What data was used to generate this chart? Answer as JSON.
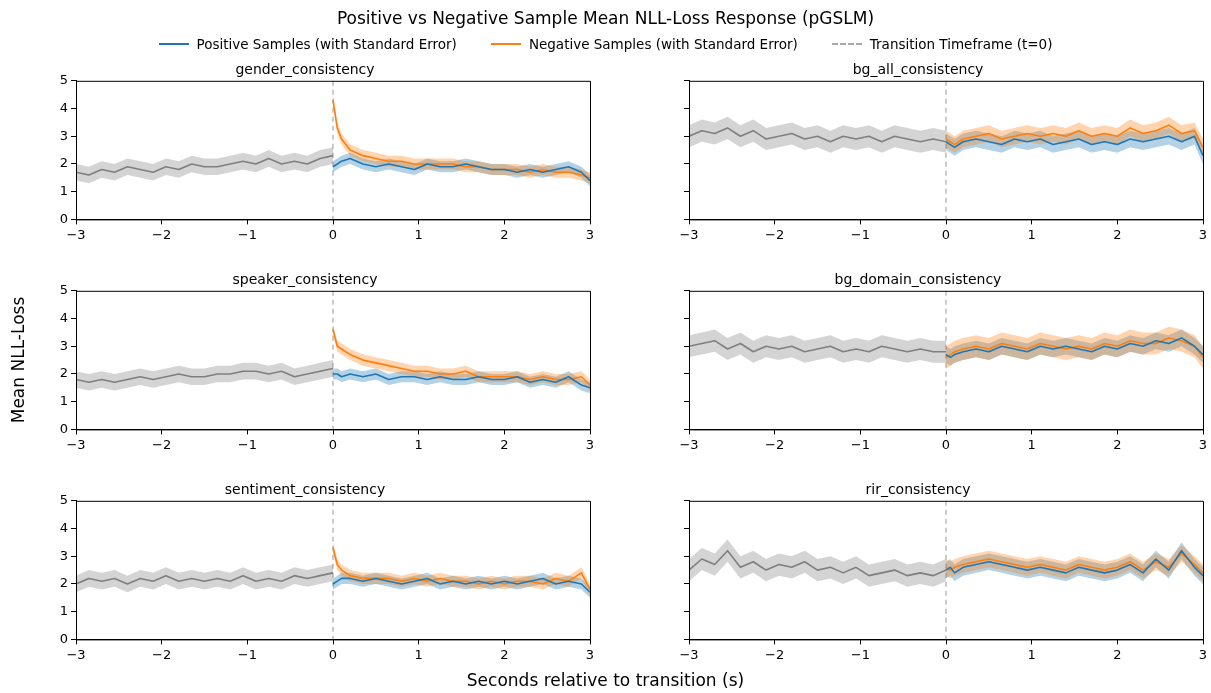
{
  "chart_data": [
    {
      "type": "line",
      "title": "Positive vs Negative Sample Mean NLL-Loss Response (pGSLM)",
      "subtitle": "gender_consistency",
      "xlabel": "Seconds relative to transition (s)",
      "ylabel": "Mean NLL-Loss",
      "legend": "top",
      "marker": "none",
      "xlim": [
        -3,
        3
      ],
      "xticks": [
        {
          "value": -3,
          "label": "−3"
        },
        {
          "value": -2,
          "label": "−2"
        },
        {
          "value": -1,
          "label": "−1"
        },
        0,
        1,
        2,
        3
      ],
      "ylim": [
        0,
        5
      ],
      "yticks": [
        0,
        1,
        2,
        3,
        4,
        5
      ],
      "ref_lines": [
        {
          "axis": "x",
          "value": 0,
          "label": "Transition Timeframe (t=0)",
          "color": "#aaaaaa",
          "line_style": "dashed"
        }
      ],
      "series": [
        {
          "color": "#7f7f7f",
          "x": [
            -3,
            -2.85,
            -2.7,
            -2.55,
            -2.4,
            -2.25,
            -2.1,
            -1.95,
            -1.8,
            -1.65,
            -1.5,
            -1.35,
            -1.2,
            -1.05,
            -0.9,
            -0.75,
            -0.6,
            -0.45,
            -0.3,
            -0.15,
            0
          ],
          "values": [
            1.7,
            1.6,
            1.8,
            1.7,
            1.9,
            1.8,
            1.7,
            1.9,
            1.8,
            2.0,
            1.9,
            1.9,
            2.0,
            2.1,
            2.0,
            2.2,
            2.0,
            2.1,
            2.0,
            2.2,
            2.3
          ],
          "lower": [
            1.4,
            1.3,
            1.5,
            1.4,
            1.6,
            1.5,
            1.4,
            1.6,
            1.5,
            1.7,
            1.6,
            1.6,
            1.7,
            1.8,
            1.7,
            1.9,
            1.7,
            1.8,
            1.7,
            1.9,
            2.0
          ],
          "upper": [
            2.0,
            1.9,
            2.1,
            2.0,
            2.2,
            2.1,
            2.0,
            2.2,
            2.1,
            2.3,
            2.2,
            2.2,
            2.3,
            2.4,
            2.3,
            2.5,
            2.3,
            2.4,
            2.3,
            2.5,
            2.6
          ]
        },
        {
          "name": "Positive Samples (with Standard Error)",
          "color": "#1f77b4",
          "x": [
            0,
            0.05,
            0.1,
            0.2,
            0.35,
            0.5,
            0.65,
            0.8,
            0.95,
            1.1,
            1.25,
            1.4,
            1.55,
            1.7,
            1.85,
            2,
            2.15,
            2.3,
            2.45,
            2.6,
            2.75,
            2.9,
            3
          ],
          "values": [
            1.9,
            2.0,
            2.1,
            2.2,
            2.0,
            1.9,
            2.0,
            1.9,
            1.8,
            2.0,
            1.9,
            1.9,
            2.0,
            1.9,
            1.8,
            1.8,
            1.7,
            1.8,
            1.7,
            1.8,
            1.9,
            1.7,
            1.4
          ],
          "lower": [
            1.7,
            1.8,
            1.9,
            2.0,
            1.8,
            1.7,
            1.8,
            1.7,
            1.6,
            1.8,
            1.7,
            1.7,
            1.8,
            1.7,
            1.6,
            1.6,
            1.5,
            1.6,
            1.5,
            1.6,
            1.7,
            1.5,
            1.2
          ],
          "upper": [
            2.1,
            2.2,
            2.3,
            2.4,
            2.2,
            2.1,
            2.2,
            2.1,
            2.0,
            2.2,
            2.1,
            2.1,
            2.2,
            2.1,
            2.0,
            2.0,
            1.9,
            2.0,
            1.9,
            2.0,
            2.1,
            1.9,
            1.6
          ]
        },
        {
          "name": "Negative Samples (with Standard Error)",
          "color": "#ff7f0e",
          "x": [
            0,
            0.05,
            0.1,
            0.2,
            0.35,
            0.5,
            0.65,
            0.8,
            0.95,
            1.1,
            1.25,
            1.4,
            1.55,
            1.7,
            1.85,
            2,
            2.15,
            2.3,
            2.45,
            2.6,
            2.75,
            2.9,
            3
          ],
          "values": [
            4.3,
            3.3,
            2.9,
            2.5,
            2.3,
            2.2,
            2.1,
            2.1,
            2.0,
            2.0,
            2.0,
            2.0,
            1.9,
            1.9,
            1.8,
            1.8,
            1.8,
            1.7,
            1.8,
            1.7,
            1.7,
            1.6,
            1.5
          ],
          "lower": [
            4.1,
            3.1,
            2.7,
            2.3,
            2.1,
            2.0,
            1.9,
            1.9,
            1.8,
            1.8,
            1.8,
            1.8,
            1.7,
            1.7,
            1.6,
            1.6,
            1.6,
            1.5,
            1.6,
            1.5,
            1.5,
            1.4,
            1.3
          ],
          "upper": [
            4.5,
            3.5,
            3.1,
            2.7,
            2.5,
            2.4,
            2.3,
            2.3,
            2.2,
            2.2,
            2.2,
            2.2,
            2.1,
            2.1,
            2.0,
            2.0,
            2.0,
            1.9,
            2.0,
            1.9,
            1.9,
            1.8,
            1.7
          ]
        }
      ]
    },
    {
      "type": "line",
      "title": "bg_all_consistency",
      "tick_labels": "x",
      "marker": "none",
      "xlim": [
        -3,
        3
      ],
      "xticks": [
        {
          "value": -3,
          "label": "−3"
        },
        {
          "value": -2,
          "label": "−2"
        },
        {
          "value": -1,
          "label": "−1"
        },
        0,
        1,
        2,
        3
      ],
      "ylim": [
        0,
        5
      ],
      "yticks": [
        0,
        1,
        2,
        3,
        4,
        5
      ],
      "ref_lines": [
        {
          "axis": "x",
          "value": 0,
          "color": "#aaaaaa",
          "line_style": "dashed"
        }
      ],
      "series": [
        {
          "color": "#7f7f7f",
          "x": [
            -3,
            -2.85,
            -2.7,
            -2.55,
            -2.4,
            -2.25,
            -2.1,
            -1.95,
            -1.8,
            -1.65,
            -1.5,
            -1.35,
            -1.2,
            -1.05,
            -0.9,
            -0.75,
            -0.6,
            -0.45,
            -0.3,
            -0.15,
            0
          ],
          "values": [
            3.0,
            3.2,
            3.1,
            3.3,
            3.0,
            3.2,
            2.9,
            3.0,
            3.1,
            2.9,
            3.0,
            2.8,
            3.0,
            2.9,
            3.0,
            2.8,
            3.0,
            2.9,
            2.8,
            2.9,
            2.8
          ],
          "lower": [
            2.6,
            2.8,
            2.7,
            2.9,
            2.6,
            2.8,
            2.5,
            2.6,
            2.7,
            2.5,
            2.6,
            2.4,
            2.6,
            2.5,
            2.6,
            2.4,
            2.6,
            2.5,
            2.4,
            2.5,
            2.4
          ],
          "upper": [
            3.4,
            3.6,
            3.5,
            3.7,
            3.4,
            3.6,
            3.3,
            3.4,
            3.5,
            3.3,
            3.4,
            3.2,
            3.4,
            3.3,
            3.4,
            3.2,
            3.4,
            3.3,
            3.2,
            3.3,
            3.2
          ]
        },
        {
          "color": "#1f77b4",
          "x": [
            0,
            0.05,
            0.1,
            0.2,
            0.35,
            0.5,
            0.65,
            0.8,
            0.95,
            1.1,
            1.25,
            1.4,
            1.55,
            1.7,
            1.85,
            2,
            2.15,
            2.3,
            2.45,
            2.6,
            2.75,
            2.9,
            3
          ],
          "values": [
            2.8,
            2.7,
            2.6,
            2.8,
            2.9,
            2.8,
            2.7,
            2.9,
            2.8,
            2.9,
            2.7,
            2.8,
            2.9,
            2.7,
            2.8,
            2.7,
            2.9,
            2.8,
            2.9,
            3.0,
            2.8,
            3.0,
            2.3
          ],
          "lower": [
            2.5,
            2.4,
            2.3,
            2.5,
            2.6,
            2.5,
            2.4,
            2.6,
            2.5,
            2.6,
            2.4,
            2.5,
            2.6,
            2.4,
            2.5,
            2.4,
            2.6,
            2.5,
            2.6,
            2.7,
            2.5,
            2.7,
            2.0
          ],
          "upper": [
            3.1,
            3.0,
            2.9,
            3.1,
            3.2,
            3.1,
            3.0,
            3.2,
            3.1,
            3.2,
            3.0,
            3.1,
            3.2,
            3.0,
            3.1,
            3.0,
            3.2,
            3.1,
            3.2,
            3.3,
            3.1,
            3.3,
            2.6
          ]
        },
        {
          "color": "#ff7f0e",
          "x": [
            0,
            0.05,
            0.1,
            0.2,
            0.35,
            0.5,
            0.65,
            0.8,
            0.95,
            1.1,
            1.25,
            1.4,
            1.55,
            1.7,
            1.85,
            2,
            2.15,
            2.3,
            2.45,
            2.6,
            2.75,
            2.9,
            3
          ],
          "values": [
            2.9,
            2.8,
            2.7,
            2.9,
            3.0,
            3.1,
            2.9,
            3.0,
            3.1,
            3.0,
            3.1,
            3.0,
            3.2,
            3.0,
            3.1,
            3.0,
            3.3,
            3.1,
            3.2,
            3.4,
            3.1,
            3.2,
            2.6
          ],
          "lower": [
            2.6,
            2.5,
            2.4,
            2.6,
            2.7,
            2.8,
            2.6,
            2.7,
            2.8,
            2.7,
            2.8,
            2.7,
            2.9,
            2.7,
            2.8,
            2.7,
            3.0,
            2.8,
            2.9,
            3.1,
            2.8,
            2.9,
            2.3
          ],
          "upper": [
            3.2,
            3.1,
            3.0,
            3.2,
            3.3,
            3.4,
            3.2,
            3.3,
            3.4,
            3.3,
            3.4,
            3.3,
            3.5,
            3.3,
            3.4,
            3.3,
            3.6,
            3.4,
            3.5,
            3.7,
            3.4,
            3.5,
            2.9
          ]
        }
      ]
    },
    {
      "type": "line",
      "title": "speaker_consistency",
      "marker": "none",
      "xlim": [
        -3,
        3
      ],
      "xticks": [
        {
          "value": -3,
          "label": "−3"
        },
        {
          "value": -2,
          "label": "−2"
        },
        {
          "value": -1,
          "label": "−1"
        },
        0,
        1,
        2,
        3
      ],
      "ylim": [
        0,
        5
      ],
      "yticks": [
        0,
        1,
        2,
        3,
        4,
        5
      ],
      "ref_lines": [
        {
          "axis": "x",
          "value": 0,
          "color": "#aaaaaa",
          "line_style": "dashed"
        }
      ],
      "series": [
        {
          "color": "#7f7f7f",
          "x": [
            -3,
            -2.85,
            -2.7,
            -2.55,
            -2.4,
            -2.25,
            -2.1,
            -1.95,
            -1.8,
            -1.65,
            -1.5,
            -1.35,
            -1.2,
            -1.05,
            -0.9,
            -0.75,
            -0.6,
            -0.45,
            -0.3,
            -0.15,
            0
          ],
          "values": [
            1.8,
            1.7,
            1.8,
            1.7,
            1.8,
            1.9,
            1.8,
            1.9,
            2.0,
            1.9,
            1.9,
            2.0,
            2.0,
            2.1,
            2.1,
            2.0,
            2.1,
            1.9,
            2.0,
            2.1,
            2.2
          ],
          "lower": [
            1.5,
            1.4,
            1.5,
            1.4,
            1.5,
            1.6,
            1.5,
            1.6,
            1.7,
            1.6,
            1.6,
            1.7,
            1.7,
            1.8,
            1.8,
            1.7,
            1.8,
            1.6,
            1.7,
            1.8,
            1.9
          ],
          "upper": [
            2.1,
            2.0,
            2.1,
            2.0,
            2.1,
            2.2,
            2.1,
            2.2,
            2.3,
            2.2,
            2.2,
            2.3,
            2.3,
            2.4,
            2.4,
            2.3,
            2.4,
            2.2,
            2.3,
            2.4,
            2.5
          ]
        },
        {
          "color": "#1f77b4",
          "x": [
            0,
            0.05,
            0.1,
            0.2,
            0.35,
            0.5,
            0.65,
            0.8,
            0.95,
            1.1,
            1.25,
            1.4,
            1.55,
            1.7,
            1.85,
            2,
            2.15,
            2.3,
            2.45,
            2.6,
            2.75,
            2.9,
            3
          ],
          "values": [
            2.0,
            2.0,
            1.9,
            2.0,
            1.9,
            2.0,
            1.8,
            1.9,
            1.9,
            1.8,
            1.9,
            1.8,
            1.8,
            1.9,
            1.8,
            1.8,
            1.9,
            1.7,
            1.8,
            1.7,
            1.9,
            1.6,
            1.5
          ],
          "lower": [
            1.8,
            1.8,
            1.7,
            1.8,
            1.7,
            1.8,
            1.6,
            1.7,
            1.7,
            1.6,
            1.7,
            1.6,
            1.6,
            1.7,
            1.6,
            1.6,
            1.7,
            1.5,
            1.6,
            1.5,
            1.7,
            1.4,
            1.3
          ],
          "upper": [
            2.2,
            2.2,
            2.1,
            2.2,
            2.1,
            2.2,
            2.0,
            2.1,
            2.1,
            2.0,
            2.1,
            2.0,
            2.0,
            2.1,
            2.0,
            2.0,
            2.1,
            1.9,
            2.0,
            1.9,
            2.1,
            1.8,
            1.7
          ]
        },
        {
          "color": "#ff7f0e",
          "x": [
            0,
            0.05,
            0.1,
            0.2,
            0.35,
            0.5,
            0.65,
            0.8,
            0.95,
            1.1,
            1.25,
            1.4,
            1.55,
            1.7,
            1.85,
            2,
            2.15,
            2.3,
            2.45,
            2.6,
            2.75,
            2.9,
            3
          ],
          "values": [
            3.6,
            3.0,
            2.9,
            2.7,
            2.5,
            2.4,
            2.3,
            2.2,
            2.1,
            2.1,
            2.0,
            2.0,
            2.1,
            1.9,
            1.9,
            1.9,
            1.9,
            1.8,
            1.9,
            1.8,
            1.8,
            1.9,
            1.6
          ],
          "lower": [
            3.4,
            2.8,
            2.7,
            2.5,
            2.3,
            2.2,
            2.1,
            2.0,
            1.9,
            1.9,
            1.8,
            1.8,
            1.9,
            1.7,
            1.7,
            1.7,
            1.7,
            1.6,
            1.7,
            1.6,
            1.6,
            1.7,
            1.4
          ],
          "upper": [
            3.8,
            3.2,
            3.1,
            2.9,
            2.7,
            2.6,
            2.5,
            2.4,
            2.3,
            2.3,
            2.2,
            2.2,
            2.3,
            2.1,
            2.1,
            2.1,
            2.1,
            2.0,
            2.1,
            2.0,
            2.0,
            2.1,
            1.8
          ]
        }
      ]
    },
    {
      "type": "line",
      "title": "bg_domain_consistency",
      "tick_labels": "x",
      "marker": "none",
      "xlim": [
        -3,
        3
      ],
      "xticks": [
        {
          "value": -3,
          "label": "−3"
        },
        {
          "value": -2,
          "label": "−2"
        },
        {
          "value": -1,
          "label": "−1"
        },
        0,
        1,
        2,
        3
      ],
      "ylim": [
        0,
        5
      ],
      "yticks": [
        0,
        1,
        2,
        3,
        4,
        5
      ],
      "ref_lines": [
        {
          "axis": "x",
          "value": 0,
          "color": "#aaaaaa",
          "line_style": "dashed"
        }
      ],
      "series": [
        {
          "color": "#7f7f7f",
          "x": [
            -3,
            -2.85,
            -2.7,
            -2.55,
            -2.4,
            -2.25,
            -2.1,
            -1.95,
            -1.8,
            -1.65,
            -1.5,
            -1.35,
            -1.2,
            -1.05,
            -0.9,
            -0.75,
            -0.6,
            -0.45,
            -0.3,
            -0.15,
            0
          ],
          "values": [
            3.0,
            3.1,
            3.2,
            2.9,
            3.1,
            2.8,
            3.0,
            2.9,
            3.0,
            2.8,
            2.9,
            3.0,
            2.8,
            2.9,
            2.8,
            3.0,
            2.9,
            2.8,
            2.9,
            2.8,
            2.8
          ],
          "lower": [
            2.6,
            2.7,
            2.8,
            2.5,
            2.7,
            2.4,
            2.6,
            2.5,
            2.6,
            2.4,
            2.5,
            2.6,
            2.4,
            2.5,
            2.4,
            2.6,
            2.5,
            2.4,
            2.5,
            2.4,
            2.4
          ],
          "upper": [
            3.4,
            3.5,
            3.6,
            3.3,
            3.5,
            3.2,
            3.4,
            3.3,
            3.4,
            3.2,
            3.3,
            3.4,
            3.2,
            3.3,
            3.2,
            3.4,
            3.3,
            3.2,
            3.3,
            3.2,
            3.2
          ]
        },
        {
          "color": "#1f77b4",
          "x": [
            0,
            0.05,
            0.1,
            0.2,
            0.35,
            0.5,
            0.65,
            0.8,
            0.95,
            1.1,
            1.25,
            1.4,
            1.55,
            1.7,
            1.85,
            2,
            2.15,
            2.3,
            2.45,
            2.6,
            2.75,
            2.9,
            3
          ],
          "values": [
            2.7,
            2.6,
            2.7,
            2.8,
            2.9,
            2.8,
            3.0,
            2.9,
            2.8,
            3.0,
            2.9,
            3.0,
            2.9,
            2.8,
            3.0,
            2.9,
            3.1,
            3.0,
            3.2,
            3.1,
            3.3,
            3.0,
            2.7
          ],
          "lower": [
            2.4,
            2.3,
            2.4,
            2.5,
            2.6,
            2.5,
            2.7,
            2.6,
            2.5,
            2.7,
            2.6,
            2.7,
            2.6,
            2.5,
            2.7,
            2.6,
            2.8,
            2.7,
            2.9,
            2.8,
            3.0,
            2.7,
            2.4
          ],
          "upper": [
            3.0,
            2.9,
            3.0,
            3.1,
            3.2,
            3.1,
            3.3,
            3.2,
            3.1,
            3.3,
            3.2,
            3.3,
            3.2,
            3.1,
            3.3,
            3.2,
            3.4,
            3.3,
            3.5,
            3.4,
            3.6,
            3.3,
            3.0
          ]
        },
        {
          "color": "#ff7f0e",
          "x": [
            0,
            0.05,
            0.1,
            0.2,
            0.35,
            0.5,
            0.65,
            0.8,
            0.95,
            1.1,
            1.25,
            1.4,
            1.55,
            1.7,
            1.85,
            2,
            2.15,
            2.3,
            2.45,
            2.6,
            2.75,
            2.9,
            3
          ],
          "values": [
            2.6,
            2.7,
            2.8,
            2.9,
            3.0,
            2.9,
            3.1,
            3.0,
            2.9,
            3.1,
            3.0,
            2.9,
            3.0,
            2.9,
            3.1,
            3.0,
            3.2,
            3.1,
            3.1,
            3.3,
            3.2,
            3.0,
            2.6
          ],
          "lower": [
            2.2,
            2.3,
            2.4,
            2.5,
            2.6,
            2.5,
            2.7,
            2.6,
            2.5,
            2.7,
            2.6,
            2.5,
            2.6,
            2.5,
            2.7,
            2.6,
            2.8,
            2.7,
            2.7,
            2.9,
            2.8,
            2.6,
            2.2
          ],
          "upper": [
            3.0,
            3.1,
            3.2,
            3.3,
            3.4,
            3.3,
            3.5,
            3.4,
            3.3,
            3.5,
            3.4,
            3.3,
            3.4,
            3.3,
            3.5,
            3.4,
            3.6,
            3.5,
            3.5,
            3.7,
            3.6,
            3.4,
            3.0
          ]
        }
      ]
    },
    {
      "type": "line",
      "title": "sentiment_consistency",
      "marker": "none",
      "xlim": [
        -3,
        3
      ],
      "xticks": [
        {
          "value": -3,
          "label": "−3"
        },
        {
          "value": -2,
          "label": "−2"
        },
        {
          "value": -1,
          "label": "−1"
        },
        0,
        1,
        2,
        3
      ],
      "ylim": [
        0,
        5
      ],
      "yticks": [
        0,
        1,
        2,
        3,
        4,
        5
      ],
      "ref_lines": [
        {
          "axis": "x",
          "value": 0,
          "color": "#aaaaaa",
          "line_style": "dashed"
        }
      ],
      "series": [
        {
          "color": "#7f7f7f",
          "x": [
            -3,
            -2.85,
            -2.7,
            -2.55,
            -2.4,
            -2.25,
            -2.1,
            -1.95,
            -1.8,
            -1.65,
            -1.5,
            -1.35,
            -1.2,
            -1.05,
            -0.9,
            -0.75,
            -0.6,
            -0.45,
            -0.3,
            -0.15,
            0
          ],
          "values": [
            2.0,
            2.2,
            2.1,
            2.2,
            2.0,
            2.2,
            2.1,
            2.3,
            2.1,
            2.2,
            2.1,
            2.2,
            2.1,
            2.3,
            2.1,
            2.2,
            2.1,
            2.3,
            2.2,
            2.3,
            2.4
          ],
          "lower": [
            1.7,
            1.9,
            1.8,
            1.9,
            1.7,
            1.9,
            1.8,
            2.0,
            1.8,
            1.9,
            1.8,
            1.9,
            1.8,
            2.0,
            1.8,
            1.9,
            1.8,
            2.0,
            1.9,
            2.0,
            2.1
          ],
          "upper": [
            2.3,
            2.5,
            2.4,
            2.5,
            2.3,
            2.5,
            2.4,
            2.6,
            2.4,
            2.5,
            2.4,
            2.5,
            2.4,
            2.6,
            2.4,
            2.5,
            2.4,
            2.6,
            2.5,
            2.6,
            2.7
          ]
        },
        {
          "color": "#1f77b4",
          "x": [
            0,
            0.05,
            0.1,
            0.2,
            0.35,
            0.5,
            0.65,
            0.8,
            0.95,
            1.1,
            1.25,
            1.4,
            1.55,
            1.7,
            1.85,
            2,
            2.15,
            2.3,
            2.45,
            2.6,
            2.75,
            2.9,
            3
          ],
          "values": [
            2.0,
            2.1,
            2.2,
            2.2,
            2.1,
            2.2,
            2.1,
            2.0,
            2.1,
            2.2,
            2.0,
            2.1,
            2.0,
            2.1,
            2.0,
            2.1,
            2.0,
            2.1,
            2.2,
            2.0,
            2.1,
            2.0,
            1.7
          ],
          "lower": [
            1.8,
            1.9,
            2.0,
            2.0,
            1.9,
            2.0,
            1.9,
            1.8,
            1.9,
            2.0,
            1.8,
            1.9,
            1.8,
            1.9,
            1.8,
            1.9,
            1.8,
            1.9,
            2.0,
            1.8,
            1.9,
            1.8,
            1.5
          ],
          "upper": [
            2.2,
            2.3,
            2.4,
            2.4,
            2.3,
            2.4,
            2.3,
            2.2,
            2.3,
            2.4,
            2.2,
            2.3,
            2.2,
            2.3,
            2.2,
            2.3,
            2.2,
            2.3,
            2.4,
            2.2,
            2.3,
            2.2,
            1.9
          ]
        },
        {
          "color": "#ff7f0e",
          "x": [
            0,
            0.05,
            0.1,
            0.2,
            0.35,
            0.5,
            0.65,
            0.8,
            0.95,
            1.1,
            1.25,
            1.4,
            1.55,
            1.7,
            1.85,
            2,
            2.15,
            2.3,
            2.45,
            2.6,
            2.75,
            2.9,
            3
          ],
          "values": [
            3.3,
            2.7,
            2.5,
            2.3,
            2.2,
            2.2,
            2.2,
            2.1,
            2.2,
            2.1,
            2.2,
            2.1,
            2.1,
            2.0,
            2.1,
            2.0,
            2.1,
            2.1,
            2.0,
            2.2,
            2.1,
            2.4,
            1.8
          ],
          "lower": [
            3.1,
            2.5,
            2.3,
            2.1,
            2.0,
            2.0,
            2.0,
            1.9,
            2.0,
            1.9,
            2.0,
            1.9,
            1.9,
            1.8,
            1.9,
            1.8,
            1.9,
            1.9,
            1.8,
            2.0,
            1.9,
            2.2,
            1.6
          ],
          "upper": [
            3.5,
            2.9,
            2.7,
            2.5,
            2.4,
            2.4,
            2.4,
            2.3,
            2.4,
            2.3,
            2.4,
            2.3,
            2.3,
            2.2,
            2.3,
            2.2,
            2.3,
            2.3,
            2.2,
            2.4,
            2.3,
            2.6,
            2.0
          ]
        }
      ]
    },
    {
      "type": "line",
      "title": "rir_consistency",
      "tick_labels": "x",
      "marker": "none",
      "xlim": [
        -3,
        3
      ],
      "xticks": [
        {
          "value": -3,
          "label": "−3"
        },
        {
          "value": -2,
          "label": "−2"
        },
        {
          "value": -1,
          "label": "−1"
        },
        0,
        1,
        2,
        3
      ],
      "ylim": [
        0,
        5
      ],
      "yticks": [
        0,
        1,
        2,
        3,
        4,
        5
      ],
      "ref_lines": [
        {
          "axis": "x",
          "value": 0,
          "color": "#aaaaaa",
          "line_style": "dashed"
        }
      ],
      "series": [
        {
          "color": "#7f7f7f",
          "x": [
            -3,
            -2.85,
            -2.7,
            -2.55,
            -2.4,
            -2.25,
            -2.1,
            -1.95,
            -1.8,
            -1.65,
            -1.5,
            -1.35,
            -1.2,
            -1.05,
            -0.9,
            -0.75,
            -0.6,
            -0.45,
            -0.3,
            -0.15,
            0
          ],
          "values": [
            2.5,
            2.9,
            2.7,
            3.2,
            2.6,
            2.8,
            2.5,
            2.7,
            2.6,
            2.8,
            2.5,
            2.6,
            2.4,
            2.6,
            2.3,
            2.4,
            2.5,
            2.3,
            2.4,
            2.3,
            2.5
          ],
          "lower": [
            2.1,
            2.5,
            2.3,
            2.8,
            2.2,
            2.4,
            2.1,
            2.3,
            2.2,
            2.4,
            2.1,
            2.2,
            2.0,
            2.2,
            1.9,
            2.0,
            2.1,
            1.9,
            2.0,
            1.9,
            2.1
          ],
          "upper": [
            2.9,
            3.3,
            3.1,
            3.6,
            3.0,
            3.2,
            2.9,
            3.1,
            3.0,
            3.2,
            2.9,
            3.0,
            2.8,
            3.0,
            2.7,
            2.8,
            2.9,
            2.7,
            2.8,
            2.7,
            2.9
          ]
        },
        {
          "color": "#1f77b4",
          "x": [
            0,
            0.05,
            0.1,
            0.2,
            0.35,
            0.5,
            0.65,
            0.8,
            0.95,
            1.1,
            1.25,
            1.4,
            1.55,
            1.7,
            1.85,
            2,
            2.15,
            2.3,
            2.45,
            2.6,
            2.75,
            2.9,
            3
          ],
          "values": [
            2.5,
            2.6,
            2.4,
            2.6,
            2.7,
            2.8,
            2.7,
            2.6,
            2.5,
            2.6,
            2.5,
            2.4,
            2.6,
            2.5,
            2.4,
            2.5,
            2.7,
            2.4,
            2.9,
            2.5,
            3.2,
            2.6,
            2.3
          ],
          "lower": [
            2.2,
            2.3,
            2.1,
            2.3,
            2.4,
            2.5,
            2.4,
            2.3,
            2.2,
            2.3,
            2.2,
            2.1,
            2.3,
            2.2,
            2.1,
            2.2,
            2.4,
            2.1,
            2.6,
            2.2,
            2.9,
            2.3,
            2.0
          ],
          "upper": [
            2.8,
            2.9,
            2.7,
            2.9,
            3.0,
            3.1,
            3.0,
            2.9,
            2.8,
            2.9,
            2.8,
            2.7,
            2.9,
            2.8,
            2.7,
            2.8,
            3.0,
            2.7,
            3.2,
            2.8,
            3.5,
            2.9,
            2.6
          ]
        },
        {
          "color": "#ff7f0e",
          "x": [
            0,
            0.05,
            0.1,
            0.2,
            0.35,
            0.5,
            0.65,
            0.8,
            0.95,
            1.1,
            1.25,
            1.4,
            1.55,
            1.7,
            1.85,
            2,
            2.15,
            2.3,
            2.45,
            2.6,
            2.75,
            2.9,
            3
          ],
          "values": [
            2.6,
            2.5,
            2.6,
            2.7,
            2.8,
            2.9,
            2.8,
            2.7,
            2.6,
            2.7,
            2.6,
            2.5,
            2.7,
            2.6,
            2.5,
            2.6,
            2.8,
            2.5,
            2.8,
            2.6,
            3.1,
            2.7,
            2.4
          ],
          "lower": [
            2.3,
            2.2,
            2.3,
            2.4,
            2.5,
            2.6,
            2.5,
            2.4,
            2.3,
            2.4,
            2.3,
            2.2,
            2.4,
            2.3,
            2.2,
            2.3,
            2.5,
            2.2,
            2.5,
            2.3,
            2.8,
            2.4,
            2.1
          ],
          "upper": [
            2.9,
            2.8,
            2.9,
            3.0,
            3.1,
            3.2,
            3.1,
            3.0,
            2.9,
            3.0,
            2.9,
            2.8,
            3.0,
            2.9,
            2.8,
            2.9,
            3.1,
            2.8,
            3.1,
            2.9,
            3.4,
            3.0,
            2.7
          ]
        }
      ]
    }
  ]
}
